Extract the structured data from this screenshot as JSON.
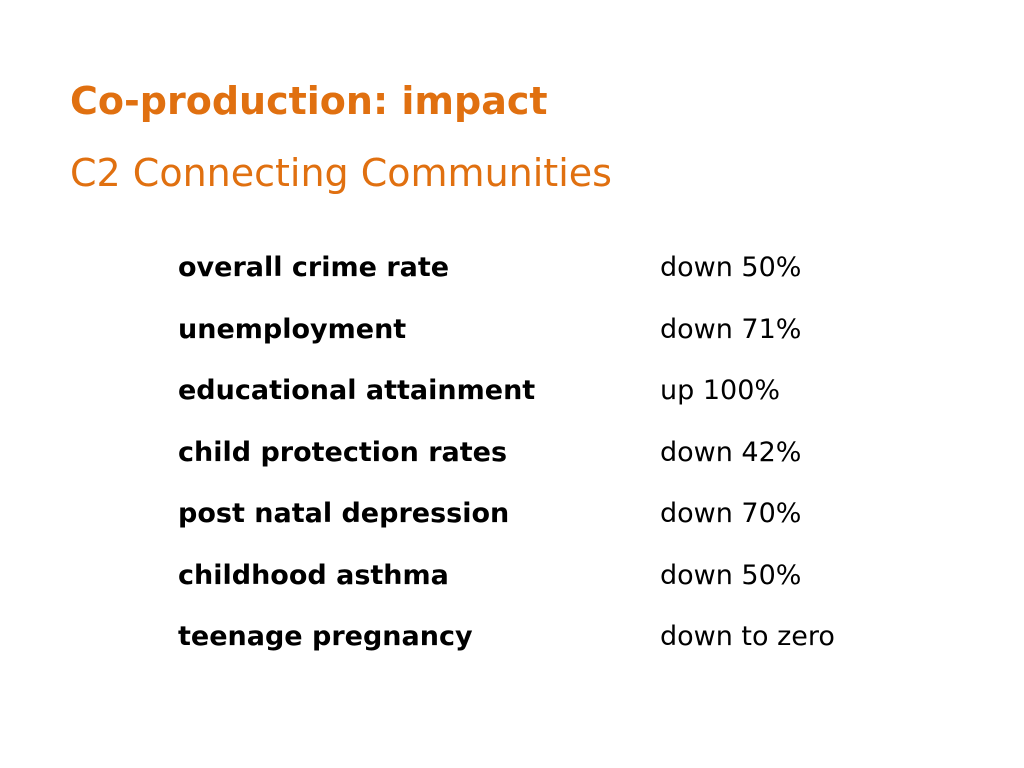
{
  "colors": {
    "accent": "#E07010",
    "text": "#000000",
    "background": "#FFFFFF"
  },
  "slide": {
    "title": "Co-production: impact",
    "subtitle": "C2 Connecting Communities",
    "stats": [
      {
        "label": "overall crime rate",
        "value": "down 50%"
      },
      {
        "label": "unemployment",
        "value": "down 71%"
      },
      {
        "label": "educational attainment",
        "value": "up 100%"
      },
      {
        "label": "child protection rates",
        "value": "down 42%"
      },
      {
        "label": "post natal depression",
        "value": "down 70%"
      },
      {
        "label": "childhood asthma",
        "value": "down 50%"
      },
      {
        "label": "teenage pregnancy",
        "value": "down to zero"
      }
    ]
  }
}
